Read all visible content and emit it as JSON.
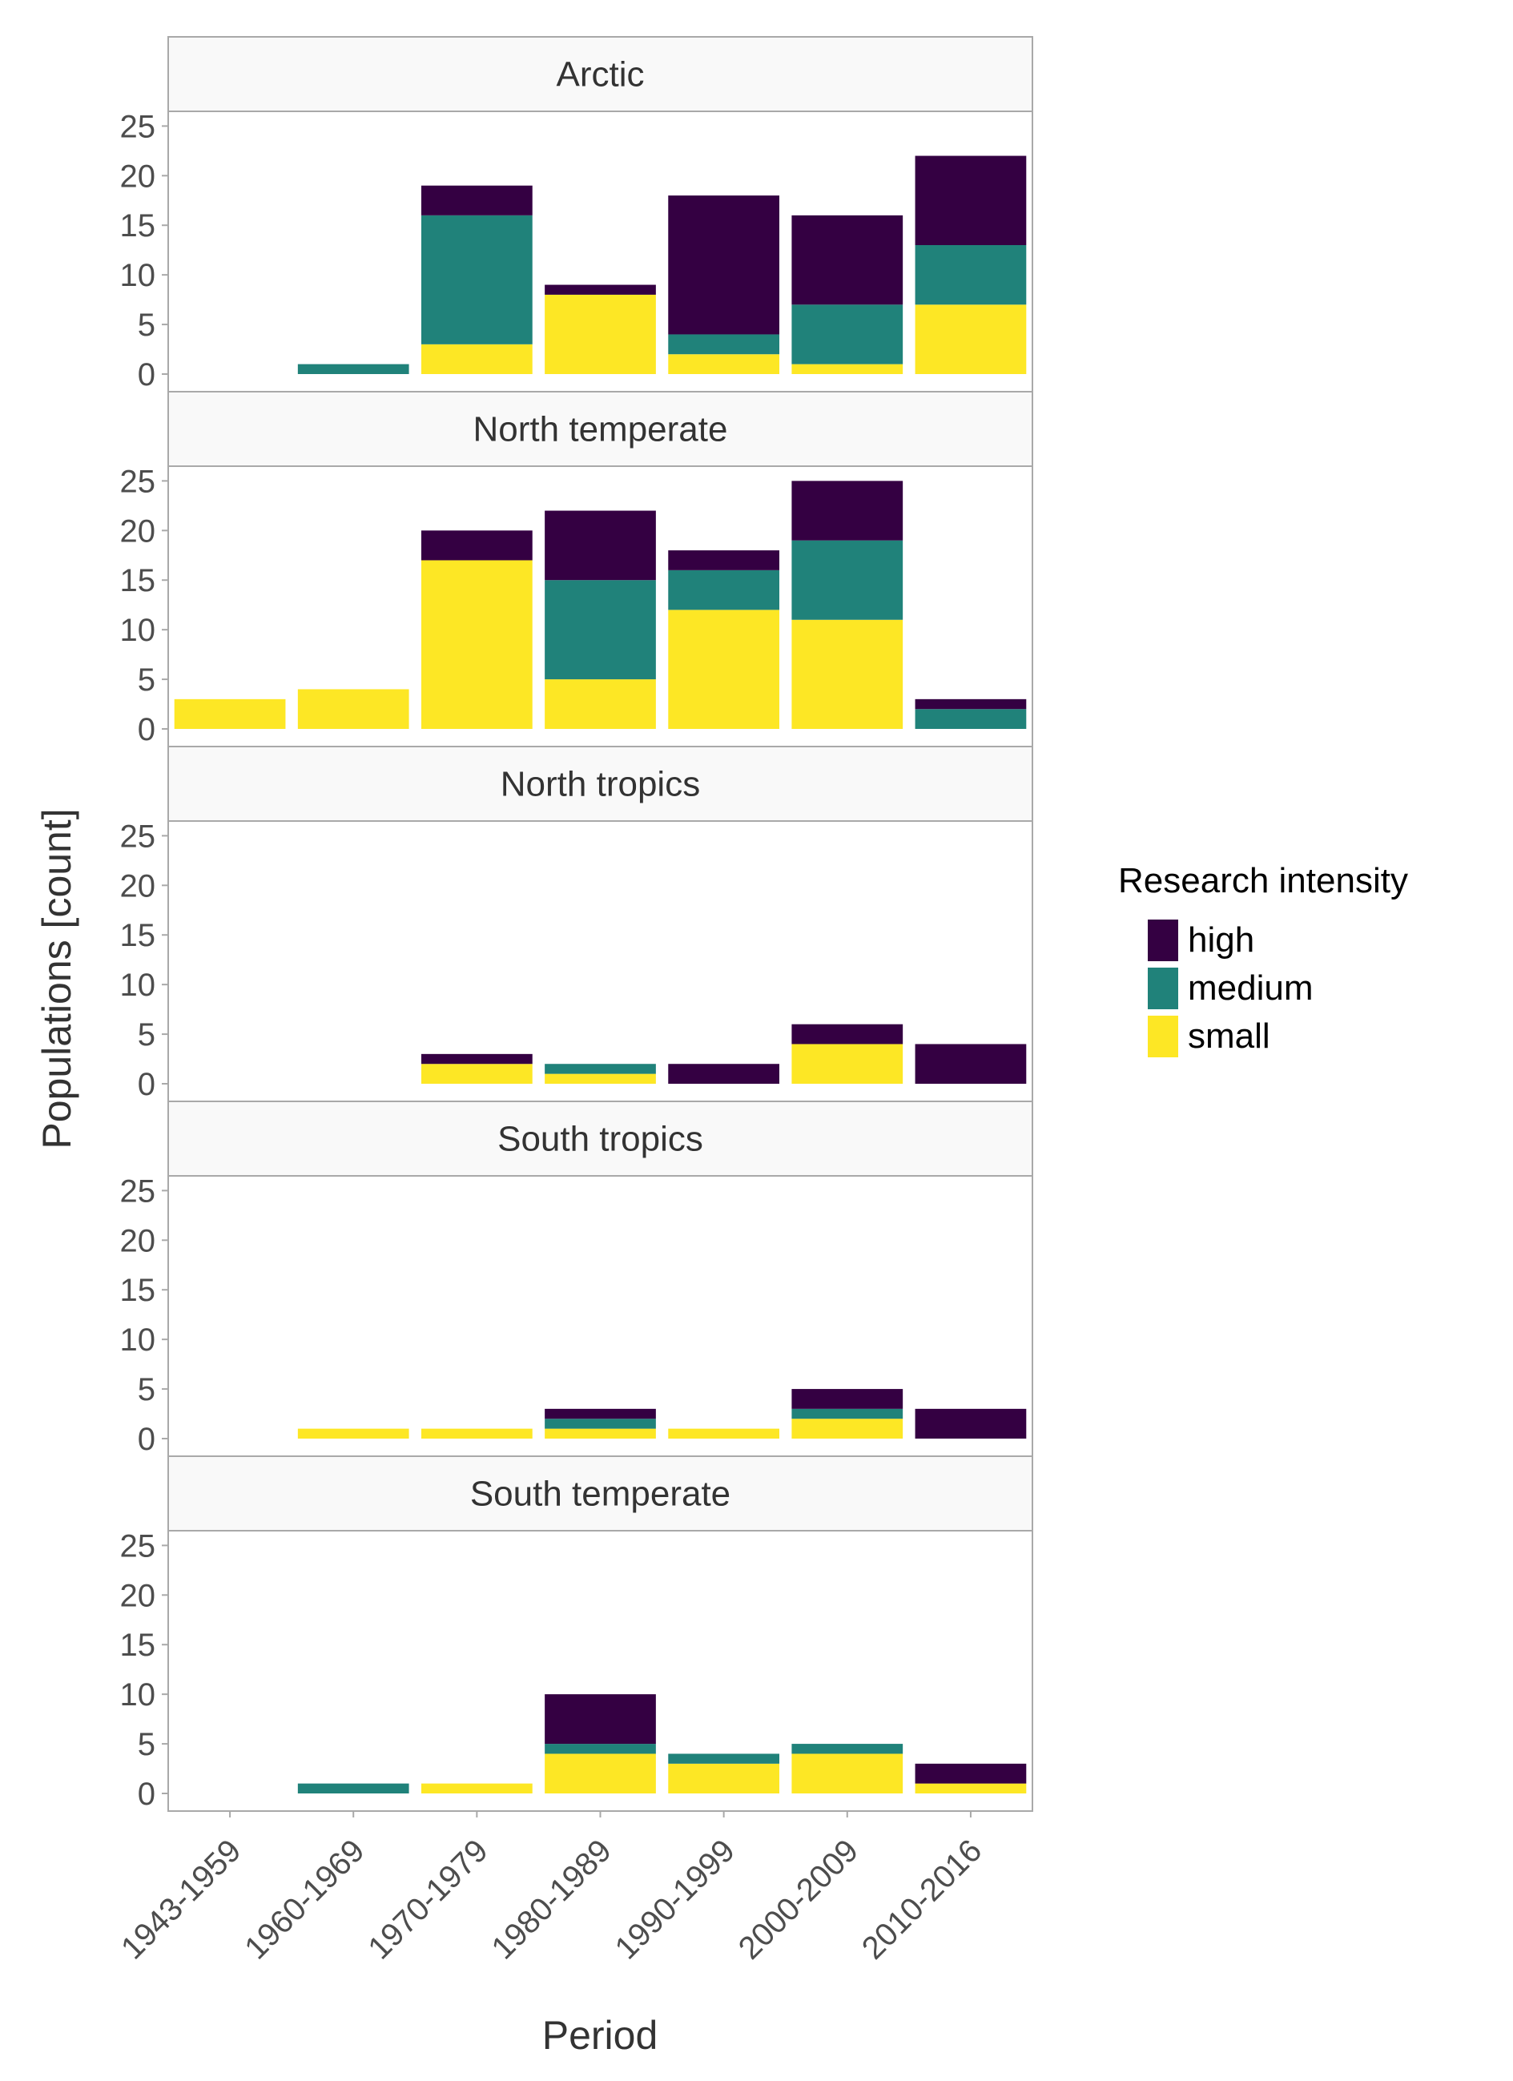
{
  "chart_data": {
    "type": "bar",
    "stacked": true,
    "facet_direction": "vertical",
    "categories": [
      "1943-1959",
      "1960-1969",
      "1970-1979",
      "1980-1989",
      "1990-1999",
      "2000-2009",
      "2010-2016"
    ],
    "xlabel": "Period",
    "ylabel": "Populations [count]",
    "ylim": [
      0,
      26
    ],
    "yticks": [
      0,
      5,
      10,
      15,
      20,
      25
    ],
    "grid": false,
    "legend": {
      "title": "Research intensity",
      "placement": "right",
      "entries": [
        {
          "name": "high",
          "color": "#340042"
        },
        {
          "name": "medium",
          "color": "#20827a"
        },
        {
          "name": "small",
          "color": "#fde725"
        }
      ]
    },
    "stack_order_bottom_to_top": [
      "small",
      "medium",
      "high"
    ],
    "panels": [
      {
        "title": "Arctic",
        "series": [
          {
            "name": "small",
            "values": [
              0,
              0,
              3,
              8,
              2,
              1,
              7
            ]
          },
          {
            "name": "medium",
            "values": [
              0,
              1,
              13,
              0,
              2,
              6,
              6
            ]
          },
          {
            "name": "high",
            "values": [
              0,
              0,
              3,
              1,
              14,
              9,
              9
            ]
          }
        ]
      },
      {
        "title": "North temperate",
        "series": [
          {
            "name": "small",
            "values": [
              3,
              4,
              17,
              5,
              12,
              11,
              0
            ]
          },
          {
            "name": "medium",
            "values": [
              0,
              0,
              0,
              10,
              4,
              8,
              2
            ]
          },
          {
            "name": "high",
            "values": [
              0,
              0,
              3,
              7,
              2,
              6,
              1
            ]
          }
        ]
      },
      {
        "title": "North tropics",
        "series": [
          {
            "name": "small",
            "values": [
              0,
              0,
              2,
              1,
              0,
              4,
              0
            ]
          },
          {
            "name": "medium",
            "values": [
              0,
              0,
              0,
              1,
              0,
              0,
              0
            ]
          },
          {
            "name": "high",
            "values": [
              0,
              0,
              1,
              0,
              2,
              2,
              4
            ]
          }
        ]
      },
      {
        "title": "South tropics",
        "series": [
          {
            "name": "small",
            "values": [
              0,
              1,
              1,
              1,
              1,
              2,
              0
            ]
          },
          {
            "name": "medium",
            "values": [
              0,
              0,
              0,
              1,
              0,
              1,
              0
            ]
          },
          {
            "name": "high",
            "values": [
              0,
              0,
              0,
              1,
              0,
              2,
              3
            ]
          }
        ]
      },
      {
        "title": "South temperate",
        "series": [
          {
            "name": "small",
            "values": [
              0,
              0,
              1,
              4,
              3,
              4,
              1
            ]
          },
          {
            "name": "medium",
            "values": [
              0,
              1,
              0,
              1,
              1,
              1,
              0
            ]
          },
          {
            "name": "high",
            "values": [
              0,
              0,
              0,
              5,
              0,
              0,
              2
            ]
          }
        ]
      }
    ]
  }
}
